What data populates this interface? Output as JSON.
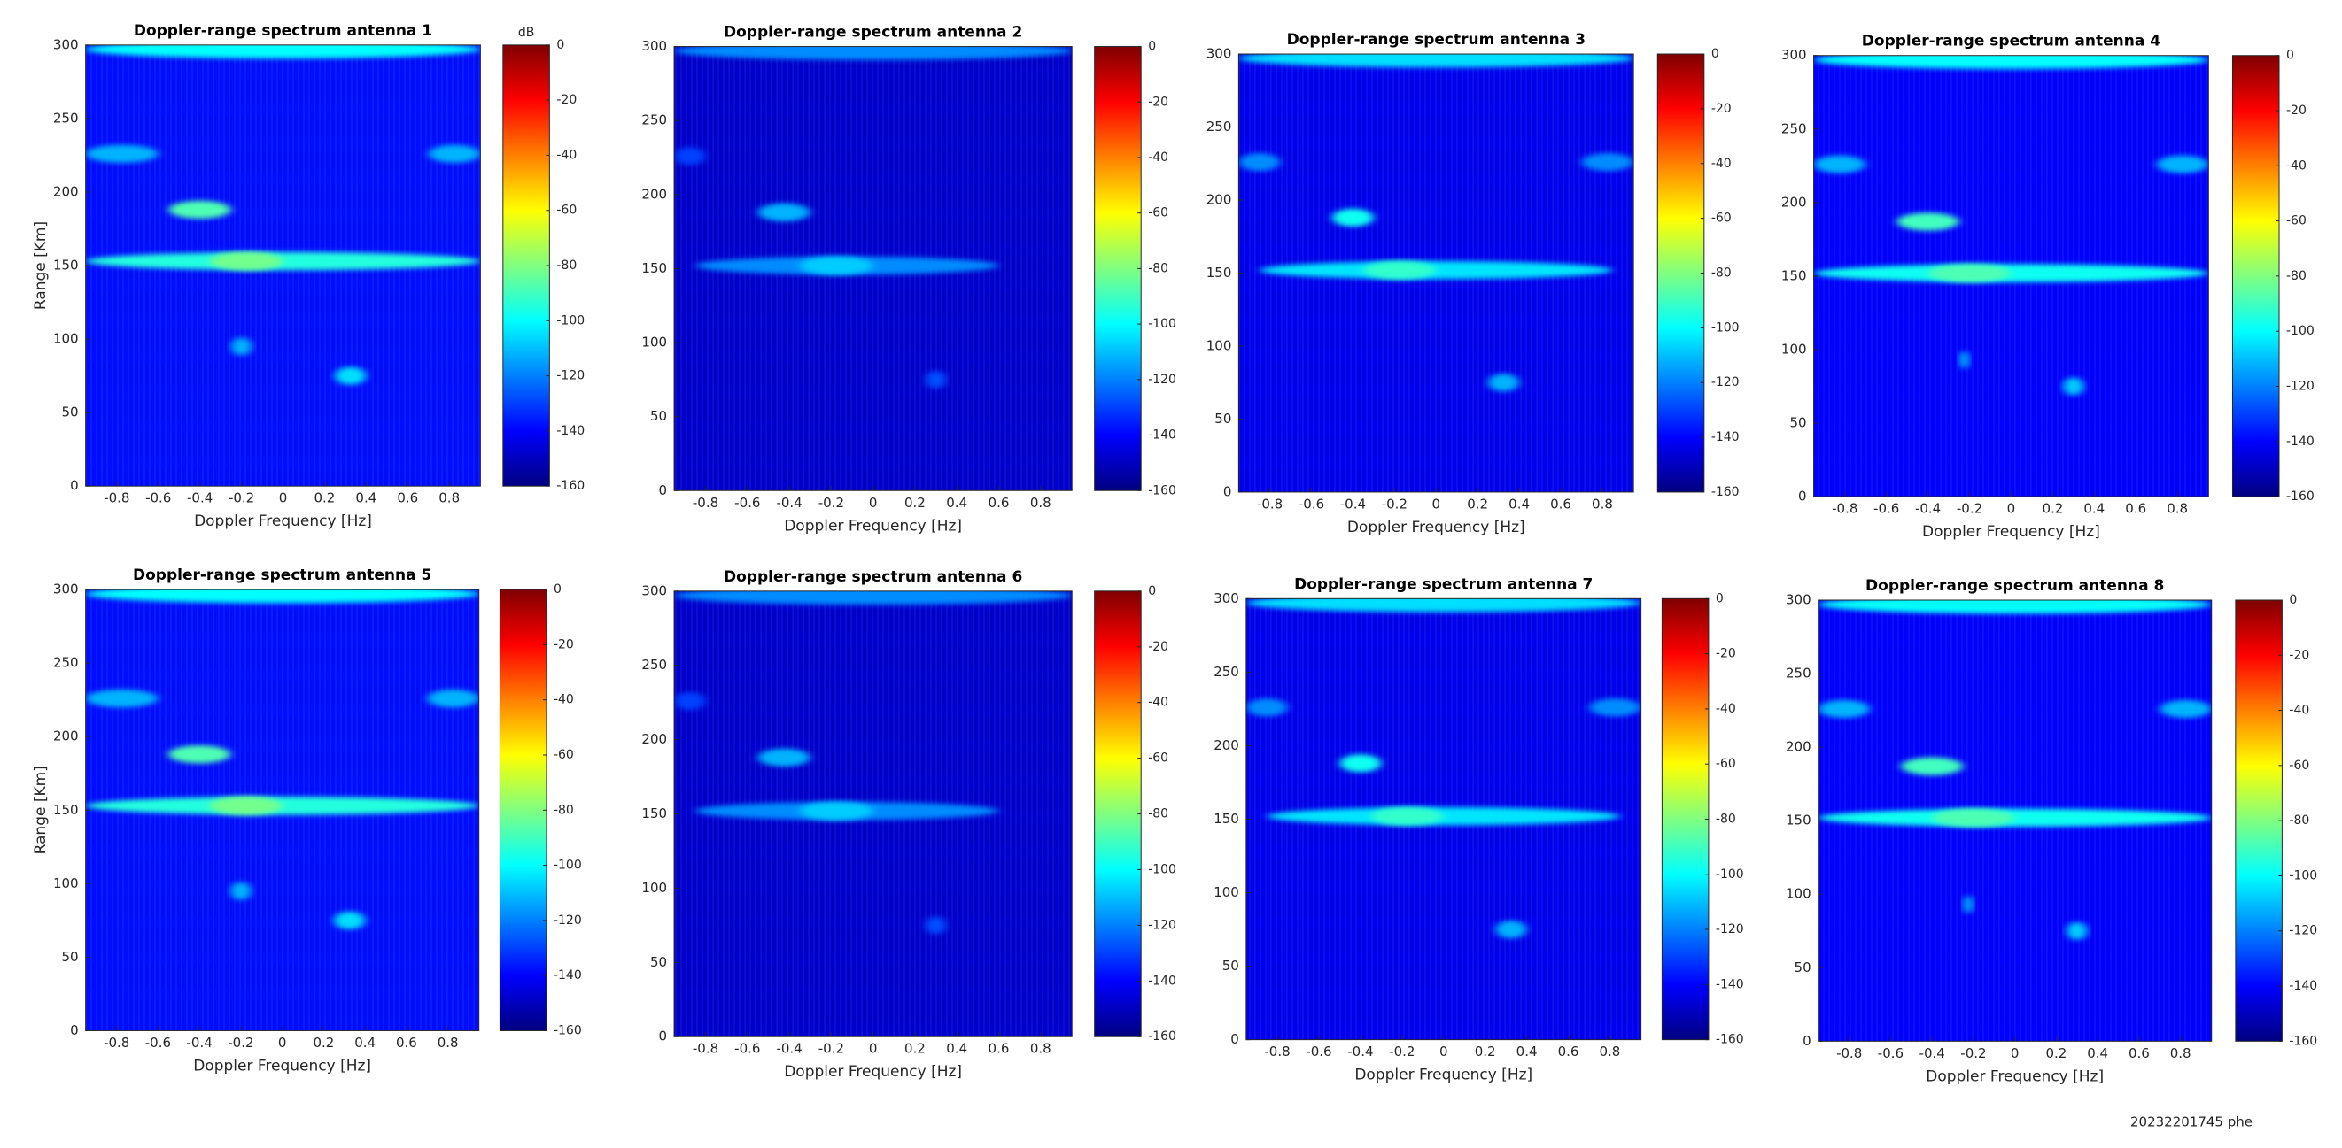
{
  "chart_data": [
    {
      "type": "heatmap",
      "title": "Doppler-range spectrum antenna 1",
      "xlabel": "Doppler Frequency [Hz]",
      "ylabel": "Range [Km]",
      "colorbar_label": "dB",
      "xlim": [
        -0.95,
        0.95
      ],
      "xticks": [
        -0.8,
        -0.6,
        -0.4,
        -0.2,
        0,
        0.2,
        0.4,
        0.6,
        0.8
      ],
      "ylim": [
        0,
        300
      ],
      "yticks": [
        0,
        50,
        100,
        150,
        200,
        250,
        300
      ],
      "clim": [
        -160,
        0
      ],
      "cticks": [
        0,
        -20,
        -40,
        -60,
        -80,
        -100,
        -120,
        -140,
        -160
      ],
      "floor": -138,
      "echoes": {
        "x0": [
          -0.95,
          0.7,
          -0.55,
          -0.95,
          -0.35,
          -0.25,
          0.25,
          -0.95
        ],
        "x1": [
          -0.6,
          0.95,
          -0.25,
          0.95,
          0.0,
          -0.15,
          0.4,
          0.95
        ],
        "y": [
          226,
          226,
          188,
          153,
          153,
          95,
          75,
          297
        ],
        "values": [
          -112,
          -112,
          -88,
          -95,
          -82,
          -112,
          -105,
          -100
        ]
      }
    },
    {
      "type": "heatmap",
      "title": "Doppler-range spectrum antenna 2",
      "xlim": [
        -0.95,
        0.95
      ],
      "xticks": [
        -0.8,
        -0.6,
        -0.4,
        -0.2,
        0,
        0.2,
        0.4,
        0.6,
        0.8
      ],
      "ylim": [
        0,
        300
      ],
      "yticks": [
        0,
        50,
        100,
        150,
        200,
        250,
        300
      ],
      "clim": [
        -160,
        0
      ],
      "cticks": [
        0,
        -20,
        -40,
        -60,
        -80,
        -100,
        -120,
        -140,
        -160
      ],
      "floor": -148,
      "echoes": {
        "x0": [
          -0.95,
          -0.55,
          -0.85,
          -0.35,
          0.25,
          -0.95
        ],
        "x1": [
          -0.8,
          -0.3,
          0.6,
          0.0,
          0.35,
          0.95
        ],
        "y": [
          226,
          188,
          152,
          152,
          75,
          297
        ],
        "values": [
          -130,
          -112,
          -118,
          -108,
          -128,
          -118
        ]
      }
    },
    {
      "type": "heatmap",
      "title": "Doppler-range spectrum antenna 3",
      "xlim": [
        -0.95,
        0.95
      ],
      "xticks": [
        -0.8,
        -0.6,
        -0.4,
        -0.2,
        0,
        0.2,
        0.4,
        0.6,
        0.8
      ],
      "ylim": [
        0,
        300
      ],
      "yticks": [
        0,
        50,
        100,
        150,
        200,
        250,
        300
      ],
      "clim": [
        -160,
        0
      ],
      "cticks": [
        0,
        -20,
        -40,
        -60,
        -80,
        -100,
        -120,
        -140,
        -160
      ],
      "floor": -143,
      "echoes": {
        "x0": [
          -0.95,
          0.7,
          -0.5,
          -0.85,
          -0.35,
          0.25,
          -0.95
        ],
        "x1": [
          -0.75,
          0.95,
          -0.3,
          0.85,
          0.0,
          0.4,
          0.95
        ],
        "y": [
          226,
          226,
          188,
          152,
          152,
          75,
          297
        ],
        "values": [
          -118,
          -118,
          -98,
          -104,
          -92,
          -112,
          -105
        ]
      }
    },
    {
      "type": "heatmap",
      "title": "Doppler-range spectrum antenna 4",
      "xlim": [
        -0.95,
        0.95
      ],
      "xticks": [
        -0.8,
        -0.6,
        -0.4,
        -0.2,
        0,
        0.2,
        0.4,
        0.6,
        0.8
      ],
      "ylim": [
        0,
        300
      ],
      "yticks": [
        0,
        50,
        100,
        150,
        200,
        250,
        300
      ],
      "clim": [
        -160,
        0
      ],
      "cticks": [
        0,
        -20,
        -40,
        -60,
        -80,
        -100,
        -120,
        -140,
        -160
      ],
      "floor": -140,
      "echoes": {
        "x0": [
          -0.95,
          0.7,
          -0.55,
          -0.95,
          -0.4,
          -0.25,
          0.25,
          -0.95
        ],
        "x1": [
          -0.7,
          0.95,
          -0.25,
          0.95,
          0.0,
          -0.2,
          0.35,
          0.95
        ],
        "y": [
          226,
          226,
          187,
          152,
          152,
          93,
          75,
          297
        ],
        "values": [
          -112,
          -112,
          -90,
          -98,
          -88,
          -112,
          -108,
          -100
        ]
      }
    },
    {
      "type": "heatmap",
      "title": "Doppler-range spectrum antenna 5",
      "xlabel": "Doppler Frequency [Hz]",
      "ylabel": "Range [Km]",
      "xlim": [
        -0.95,
        0.95
      ],
      "xticks": [
        -0.8,
        -0.6,
        -0.4,
        -0.2,
        0,
        0.2,
        0.4,
        0.6,
        0.8
      ],
      "ylim": [
        0,
        300
      ],
      "yticks": [
        0,
        50,
        100,
        150,
        200,
        250,
        300
      ],
      "clim": [
        -160,
        0
      ],
      "cticks": [
        0,
        -20,
        -40,
        -60,
        -80,
        -100,
        -120,
        -140,
        -160
      ],
      "floor": -138,
      "echoes": {
        "x0": [
          -0.95,
          0.7,
          -0.55,
          -0.95,
          -0.35,
          -0.25,
          0.25,
          -0.95
        ],
        "x1": [
          -0.6,
          0.95,
          -0.25,
          0.95,
          0.0,
          -0.15,
          0.4,
          0.95
        ],
        "y": [
          226,
          226,
          188,
          153,
          153,
          95,
          75,
          297
        ],
        "values": [
          -112,
          -112,
          -88,
          -95,
          -82,
          -112,
          -105,
          -100
        ]
      }
    },
    {
      "type": "heatmap",
      "title": "Doppler-range spectrum antenna 6",
      "xlim": [
        -0.95,
        0.95
      ],
      "xticks": [
        -0.8,
        -0.6,
        -0.4,
        -0.2,
        0,
        0.2,
        0.4,
        0.6,
        0.8
      ],
      "ylim": [
        0,
        300
      ],
      "yticks": [
        0,
        50,
        100,
        150,
        200,
        250,
        300
      ],
      "clim": [
        -160,
        0
      ],
      "cticks": [
        0,
        -20,
        -40,
        -60,
        -80,
        -100,
        -120,
        -140,
        -160
      ],
      "floor": -148,
      "echoes": {
        "x0": [
          -0.95,
          -0.55,
          -0.85,
          -0.35,
          0.25,
          -0.95
        ],
        "x1": [
          -0.8,
          -0.3,
          0.6,
          0.0,
          0.35,
          0.95
        ],
        "y": [
          226,
          188,
          152,
          152,
          75,
          297
        ],
        "values": [
          -130,
          -112,
          -118,
          -108,
          -128,
          -118
        ]
      }
    },
    {
      "type": "heatmap",
      "title": "Doppler-range spectrum antenna 7",
      "xlim": [
        -0.95,
        0.95
      ],
      "xticks": [
        -0.8,
        -0.6,
        -0.4,
        -0.2,
        0,
        0.2,
        0.4,
        0.6,
        0.8
      ],
      "ylim": [
        0,
        300
      ],
      "yticks": [
        0,
        50,
        100,
        150,
        200,
        250,
        300
      ],
      "clim": [
        -160,
        0
      ],
      "cticks": [
        0,
        -20,
        -40,
        -60,
        -80,
        -100,
        -120,
        -140,
        -160
      ],
      "floor": -143,
      "echoes": {
        "x0": [
          -0.95,
          0.7,
          -0.5,
          -0.85,
          -0.35,
          0.25,
          -0.95
        ],
        "x1": [
          -0.75,
          0.95,
          -0.3,
          0.85,
          0.0,
          0.4,
          0.95
        ],
        "y": [
          226,
          226,
          188,
          152,
          152,
          75,
          297
        ],
        "values": [
          -118,
          -118,
          -98,
          -104,
          -92,
          -112,
          -105
        ]
      }
    },
    {
      "type": "heatmap",
      "title": "Doppler-range spectrum antenna 8",
      "xlim": [
        -0.95,
        0.95
      ],
      "xticks": [
        -0.8,
        -0.6,
        -0.4,
        -0.2,
        0,
        0.2,
        0.4,
        0.6,
        0.8
      ],
      "ylim": [
        0,
        300
      ],
      "yticks": [
        0,
        50,
        100,
        150,
        200,
        250,
        300
      ],
      "clim": [
        -160,
        0
      ],
      "cticks": [
        0,
        -20,
        -40,
        -60,
        -80,
        -100,
        -120,
        -140,
        -160
      ],
      "floor": -140,
      "echoes": {
        "x0": [
          -0.95,
          0.7,
          -0.55,
          -0.95,
          -0.4,
          -0.25,
          0.25,
          -0.95
        ],
        "x1": [
          -0.7,
          0.95,
          -0.25,
          0.95,
          0.0,
          -0.2,
          0.35,
          0.95
        ],
        "y": [
          226,
          226,
          187,
          152,
          152,
          93,
          75,
          297
        ],
        "values": [
          -112,
          -112,
          -90,
          -98,
          -88,
          -112,
          -108,
          -100
        ]
      }
    }
  ],
  "footer": "20232201745 phe"
}
